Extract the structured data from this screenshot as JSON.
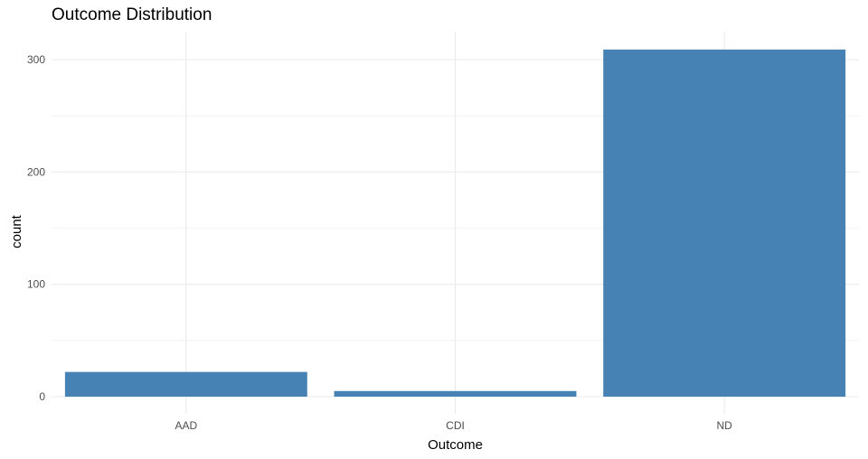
{
  "chart_data": {
    "type": "bar",
    "title": "Outcome Distribution",
    "xlabel": "Outcome",
    "ylabel": "count",
    "categories": [
      "AAD",
      "CDI",
      "ND"
    ],
    "values": [
      22,
      5,
      309
    ],
    "ylim": [
      0,
      325
    ],
    "yticks": [
      0,
      100,
      200,
      300
    ],
    "grid": true,
    "bar_color": "#4682B4",
    "grid_color": "#EBEBEB"
  }
}
